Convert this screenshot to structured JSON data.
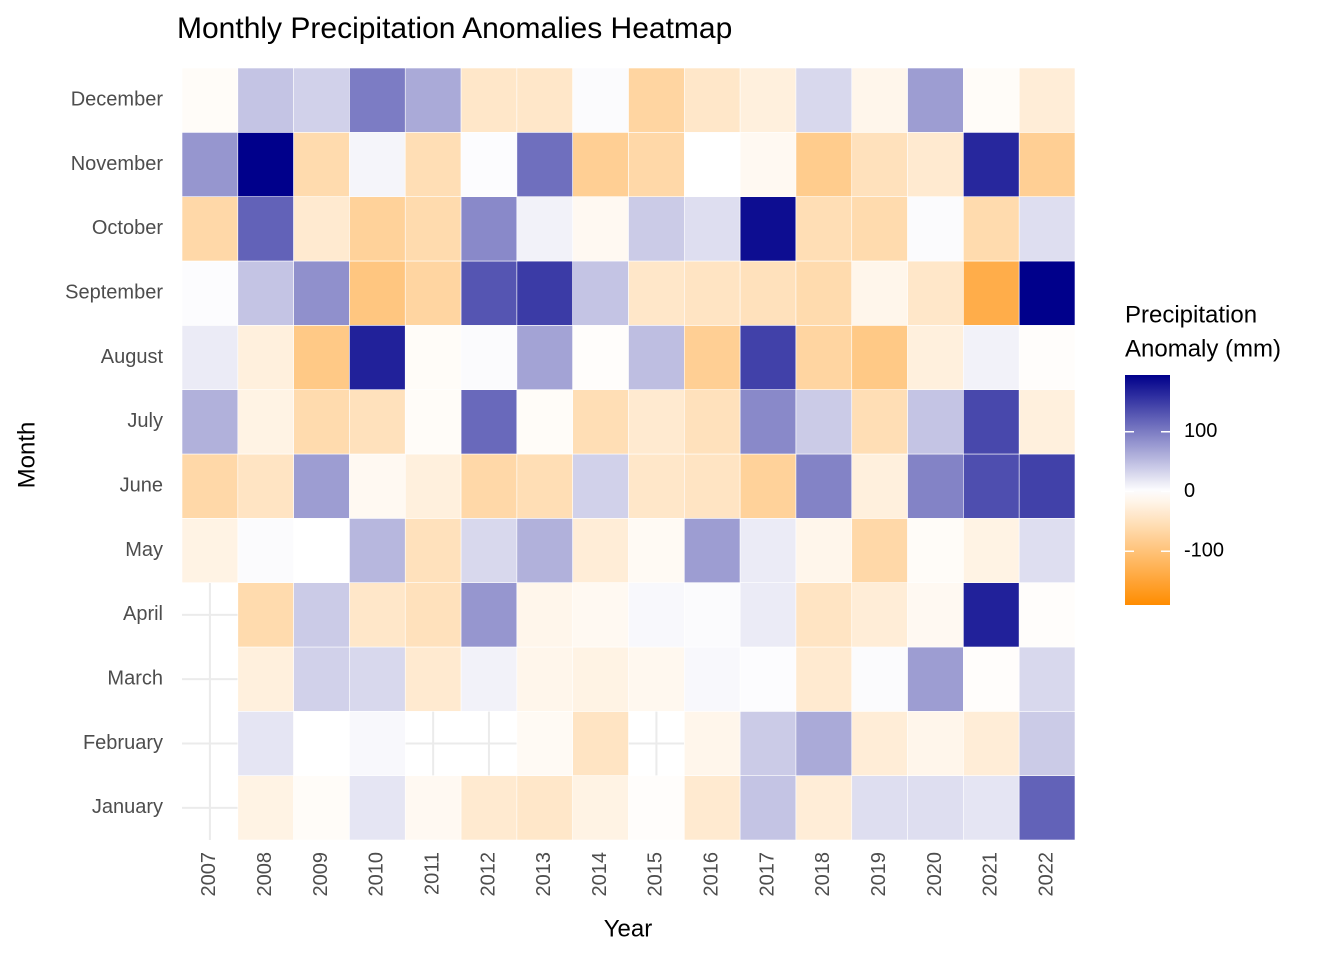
{
  "chart_data": {
    "type": "heatmap",
    "title": "Monthly Precipitation Anomalies Heatmap",
    "x_label": "Year",
    "y_label": "Month",
    "legend_title": [
      "Precipitation",
      "Anomaly (mm)"
    ],
    "x": [
      "2007",
      "2008",
      "2009",
      "2010",
      "2011",
      "2012",
      "2013",
      "2014",
      "2015",
      "2016",
      "2017",
      "2018",
      "2019",
      "2020",
      "2021",
      "2022"
    ],
    "categories": [
      "January",
      "February",
      "March",
      "April",
      "May",
      "June",
      "July",
      "August",
      "September",
      "October",
      "November",
      "December"
    ],
    "values": [
      [
        null,
        -20,
        -5,
        20,
        -10,
        -35,
        -40,
        -20,
        -3,
        -35,
        45,
        -30,
        25,
        25,
        20,
        120
      ],
      [
        null,
        20,
        0,
        5,
        null,
        null,
        -8,
        -45,
        null,
        -15,
        40,
        65,
        -30,
        -15,
        -30,
        40
      ],
      [
        null,
        -25,
        35,
        30,
        -35,
        10,
        -15,
        -20,
        -12,
        5,
        2,
        -35,
        3,
        75,
        -3,
        30
      ],
      [
        null,
        -60,
        40,
        -40,
        -50,
        80,
        -15,
        -10,
        5,
        3,
        15,
        -45,
        -30,
        -10,
        170,
        -3
      ],
      [
        -20,
        3,
        0,
        55,
        -50,
        30,
        60,
        -30,
        -8,
        75,
        15,
        -15,
        -65,
        -5,
        -20,
        25
      ],
      [
        -65,
        -45,
        75,
        -10,
        -25,
        -65,
        -55,
        35,
        -40,
        -45,
        -75,
        95,
        -25,
        95,
        135,
        145
      ],
      [
        60,
        -20,
        -60,
        -50,
        -5,
        115,
        -5,
        -55,
        -35,
        -50,
        90,
        40,
        -55,
        45,
        140,
        -25
      ],
      [
        15,
        -25,
        -90,
        170,
        -5,
        3,
        70,
        -3,
        50,
        -80,
        145,
        -70,
        -90,
        -25,
        10,
        -3
      ],
      [
        2,
        45,
        85,
        -95,
        -70,
        130,
        150,
        45,
        -40,
        -45,
        -50,
        -60,
        -15,
        -40,
        -135,
        195
      ],
      [
        -65,
        120,
        -35,
        -75,
        -60,
        90,
        10,
        -10,
        40,
        25,
        185,
        -55,
        -60,
        3,
        -60,
        25
      ],
      [
        80,
        195,
        -60,
        8,
        -55,
        2,
        110,
        -80,
        -65,
        0,
        -10,
        -85,
        -50,
        -35,
        165,
        -80
      ],
      [
        -5,
        45,
        35,
        100,
        65,
        -40,
        -40,
        3,
        -70,
        -40,
        -25,
        30,
        -15,
        75,
        -5,
        -30
      ]
    ],
    "low_color": "#ff8c00",
    "mid_color": "#ffffff",
    "high_color": "#00008b",
    "colorbar_lim": [
      -190,
      195
    ],
    "colorbar_ticks": [
      100,
      0,
      -100
    ],
    "grid": true
  }
}
